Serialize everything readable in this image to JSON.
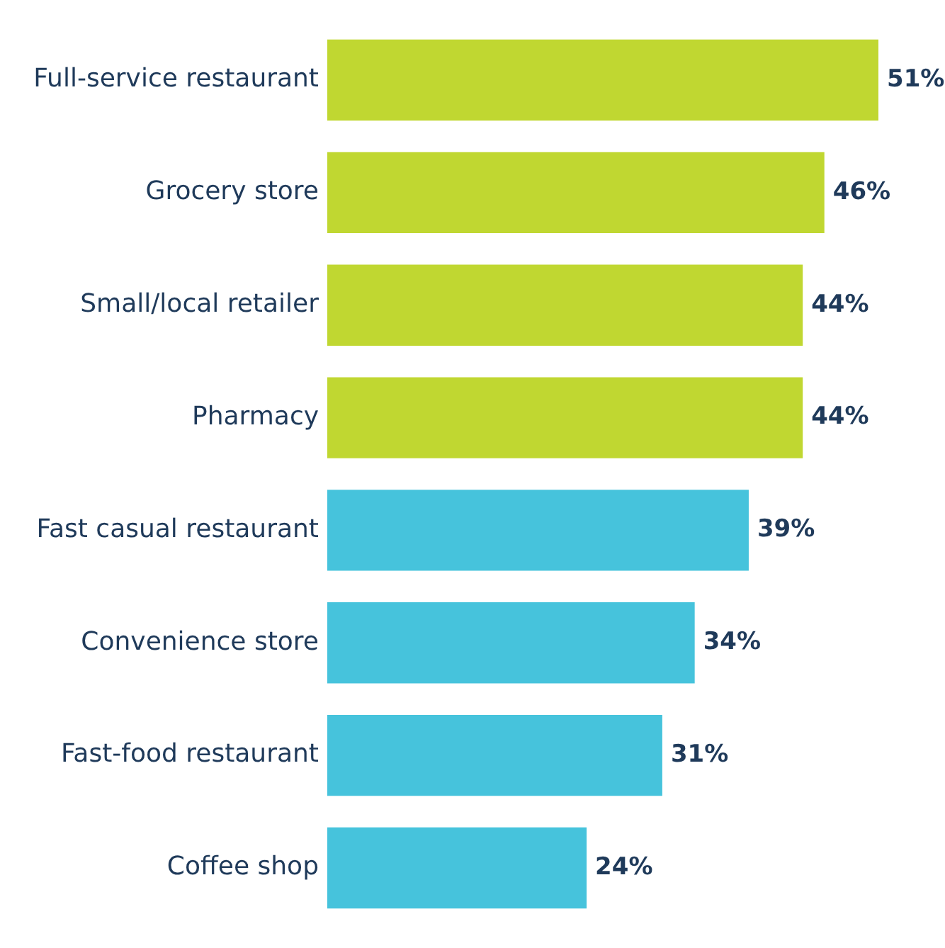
{
  "chart_data": {
    "type": "bar",
    "orientation": "horizontal",
    "categories": [
      "Full-service restaurant",
      "Grocery store",
      "Small/local retailer",
      "Pharmacy",
      "Fast casual restaurant",
      "Convenience store",
      "Fast-food restaurant",
      "Coffee shop"
    ],
    "values": [
      51,
      46,
      44,
      44,
      39,
      34,
      31,
      24
    ],
    "colors": [
      "#c0d731",
      "#c0d731",
      "#c0d731",
      "#c0d731",
      "#46c3dc",
      "#46c3dc",
      "#46c3dc",
      "#46c3dc"
    ],
    "value_labels": [
      "51%",
      "46%",
      "44%",
      "44%",
      "39%",
      "34%",
      "31%",
      "24%"
    ],
    "grid": false,
    "legend": false
  }
}
